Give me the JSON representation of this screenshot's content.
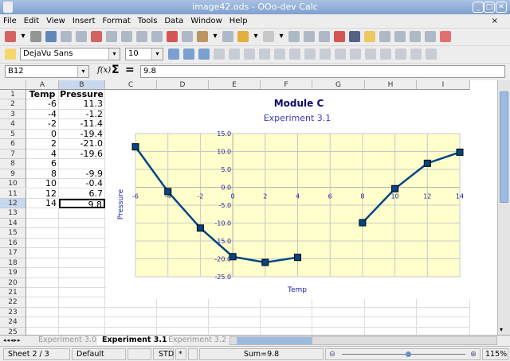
{
  "window": {
    "title": "image42.ods - OOo-dev Calc",
    "minimize": "_",
    "maximize": "□",
    "close": "✕"
  },
  "menu": [
    "File",
    "Edit",
    "View",
    "Insert",
    "Format",
    "Tools",
    "Data",
    "Window",
    "Help"
  ],
  "menu_close": "×",
  "toolbar2": {
    "font_name": "DejaVu Sans",
    "font_size": "10"
  },
  "formula_bar": {
    "cell_ref": "B12",
    "fx": "f(x)",
    "sigma": "Σ",
    "equals": "=",
    "content": "9.8"
  },
  "columns": [
    "A",
    "B",
    "C",
    "D",
    "E",
    "F",
    "G",
    "H",
    "I"
  ],
  "rows": [
    [
      "Temp",
      "Pressure"
    ],
    [
      "-6",
      "11.3"
    ],
    [
      "-4",
      "-1.2"
    ],
    [
      "-2",
      "-11.4"
    ],
    [
      "0",
      "-19.4"
    ],
    [
      "2",
      "-21.0"
    ],
    [
      "4",
      "-19.6"
    ],
    [
      "6",
      ""
    ],
    [
      "8",
      "-9.9"
    ],
    [
      "10",
      "-0.4"
    ],
    [
      "12",
      "6.7"
    ],
    [
      "14",
      "9.8"
    ]
  ],
  "row_count": 25,
  "selected_cell": "B12",
  "chart_data": {
    "type": "line",
    "title": "Module C",
    "subtitle": "Experiment 3.1",
    "xlabel": "Temp",
    "ylabel": "Pressure",
    "x": [
      -6,
      -4,
      -2,
      0,
      2,
      4,
      6,
      8,
      10,
      12,
      14
    ],
    "values": [
      11.3,
      -1.2,
      -11.4,
      -19.4,
      -21.0,
      -19.6,
      null,
      -9.9,
      -0.4,
      6.7,
      9.8
    ],
    "xlim": [
      -6,
      14
    ],
    "ylim": [
      -25,
      15
    ],
    "xticks": [
      "-6",
      "-4",
      "-2",
      "0",
      "2",
      "4",
      "6",
      "8",
      "10",
      "12",
      "14"
    ],
    "yticks": [
      "15.0",
      "10.0",
      "5.0",
      "0.0",
      "-5.0",
      "-10.0",
      "-15.0",
      "-20.0",
      "-25.0"
    ],
    "grid": true,
    "legend": "none",
    "colors": {
      "line": "#004586",
      "plot_bg": "#ffffcc",
      "text": "#1e1e9e",
      "title": "#0b0b6e"
    }
  },
  "tabs": [
    "Experiment 3.0",
    "Experiment 3.1",
    "Experiment 3.2"
  ],
  "active_tab": "Experiment 3.1",
  "status": {
    "sheet": "Sheet 2 / 3",
    "style": "Default",
    "mode": "STD",
    "modified": "*",
    "sum": "Sum=9.8",
    "zoom": "115%"
  }
}
